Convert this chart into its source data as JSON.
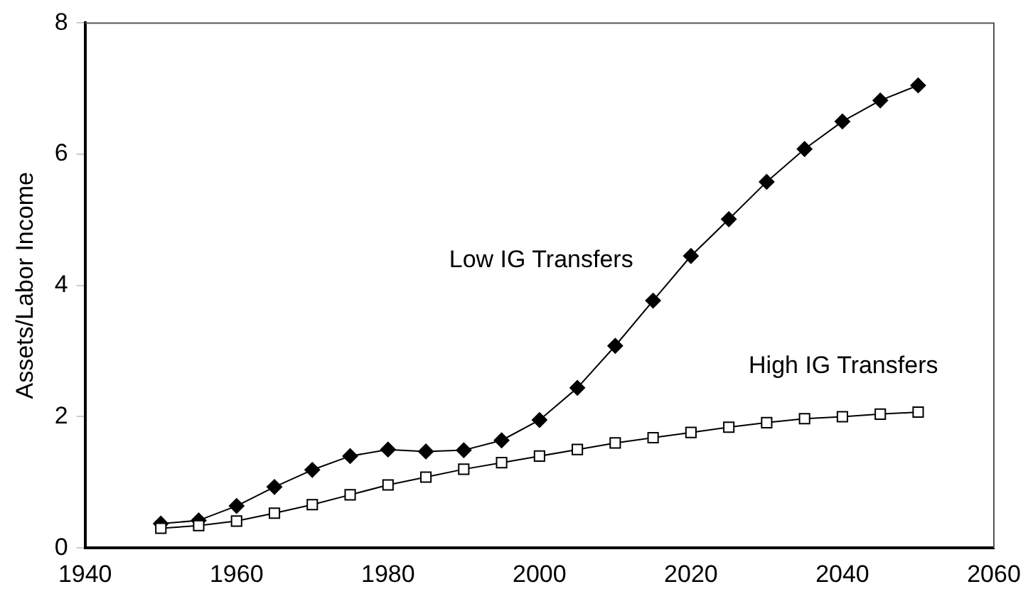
{
  "chart_data": {
    "type": "line",
    "ylabel": "Assets/Labor Income",
    "x": [
      1950,
      1955,
      1960,
      1965,
      1970,
      1975,
      1980,
      1985,
      1990,
      1995,
      2000,
      2005,
      2010,
      2015,
      2020,
      2025,
      2030,
      2035,
      2040,
      2045,
      2050
    ],
    "series": [
      {
        "name": "Low IG Transfers",
        "color": "#000000",
        "marker": "diamond",
        "values": [
          0.37,
          0.42,
          0.64,
          0.93,
          1.19,
          1.4,
          1.5,
          1.47,
          1.49,
          1.64,
          1.95,
          2.44,
          3.08,
          3.77,
          4.45,
          5.01,
          5.58,
          6.08,
          6.5,
          6.82,
          7.05
        ]
      },
      {
        "name": "High IG Transfers",
        "color": "#000000",
        "marker": "square",
        "values": [
          0.3,
          0.34,
          0.41,
          0.53,
          0.66,
          0.81,
          0.96,
          1.08,
          1.2,
          1.3,
          1.4,
          1.5,
          1.6,
          1.68,
          1.76,
          1.84,
          1.91,
          1.97,
          2.0,
          2.04,
          2.07
        ]
      }
    ],
    "xlim": [
      1940,
      2060
    ],
    "xticks": [
      1940,
      1960,
      1980,
      2000,
      2020,
      2040,
      2060
    ],
    "ylim": [
      0,
      8
    ],
    "yticks": [
      0,
      2,
      4,
      6,
      8
    ],
    "grid": false,
    "legend": false,
    "line_style": "solid"
  }
}
